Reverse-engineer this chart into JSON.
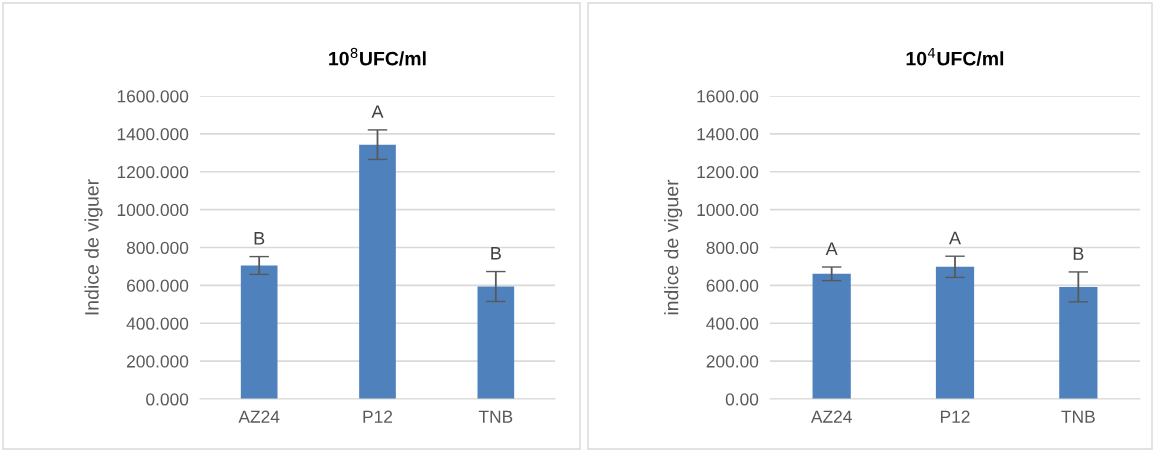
{
  "chart_data": [
    {
      "type": "bar",
      "title": "10$^{8}$UFC/ml",
      "ylabel": "Indice de viguer",
      "categories": [
        "AZ24",
        "P12",
        "TNB"
      ],
      "values": [
        705,
        1343,
        594
      ],
      "errors": [
        47,
        78,
        79
      ],
      "color": "#4f81bd",
      "ylim": [
        0,
        1600
      ],
      "yticks": [
        {
          "value": 0,
          "label": "0.000"
        },
        {
          "value": 200,
          "label": "200.000"
        },
        {
          "value": 400,
          "label": "400.000"
        },
        {
          "value": 600,
          "label": "600.000"
        },
        {
          "value": 800,
          "label": "800.000"
        },
        {
          "value": 1000,
          "label": "1000.000"
        },
        {
          "value": 1200,
          "label": "1200.000"
        },
        {
          "value": 1400,
          "label": "1400.000"
        },
        {
          "value": 1600,
          "label": "1600.000"
        }
      ],
      "grid": "y",
      "annotations": [
        "B",
        "A",
        "B"
      ]
    },
    {
      "type": "bar",
      "title": "10$^{4}$UFC/ml",
      "ylabel": "indice de viguer",
      "categories": [
        "AZ24",
        "P12",
        "TNB"
      ],
      "values": [
        661,
        698,
        592
      ],
      "errors": [
        36,
        56,
        79
      ],
      "color": "#4f81bd",
      "ylim": [
        0,
        1600
      ],
      "yticks": [
        {
          "value": 0,
          "label": "0.00"
        },
        {
          "value": 200,
          "label": "200.00"
        },
        {
          "value": 400,
          "label": "400.00"
        },
        {
          "value": 600,
          "label": "600.00"
        },
        {
          "value": 800,
          "label": "800.00"
        },
        {
          "value": 1000,
          "label": "1000.00"
        },
        {
          "value": 1200,
          "label": "1200.00"
        },
        {
          "value": 1400,
          "label": "1400.00"
        },
        {
          "value": 1600,
          "label": "1600.00"
        }
      ],
      "grid": "y",
      "annotations": [
        "A",
        "A",
        "B"
      ]
    }
  ]
}
